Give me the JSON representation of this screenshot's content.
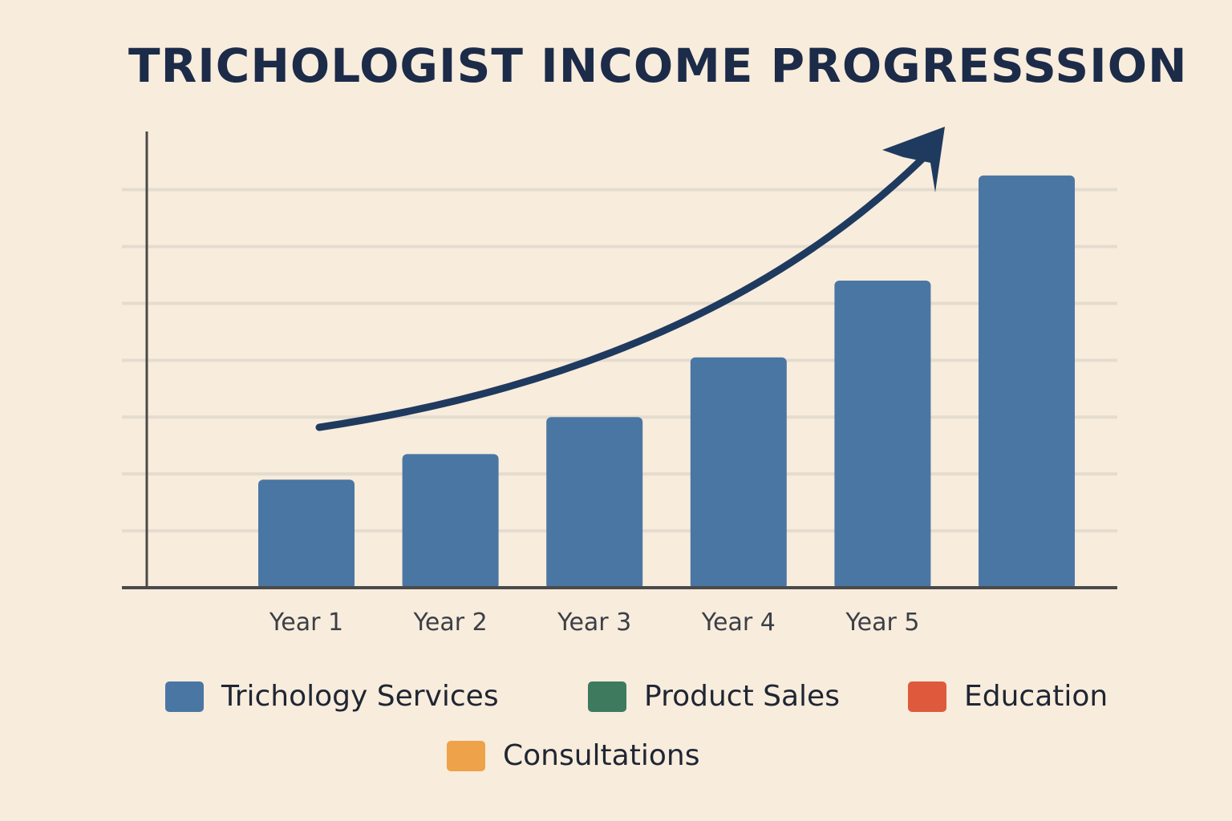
{
  "title": "TRICHOLOGIST INCOME PROGRESSSION",
  "chart_data": {
    "type": "bar",
    "title": "TRICHOLOGIST INCOME PROGRESSSION",
    "xlabel": "",
    "ylabel": "",
    "categories": [
      "Year 1",
      "Year 2",
      "Year 3",
      "Year 4",
      "Year 5",
      ""
    ],
    "values": [
      1.9,
      2.35,
      3.0,
      4.05,
      5.4,
      7.25
    ],
    "ylim": [
      0,
      7.6
    ],
    "gridlines": [
      1,
      2,
      3,
      4,
      5,
      6,
      7
    ],
    "grid": true,
    "trend_arrow": true,
    "legend_placement": "bottom",
    "legend": [
      {
        "label": "Trichology Services",
        "color": "#4a76a4"
      },
      {
        "label": "Product Sales",
        "color": "#3e7a5e"
      },
      {
        "label": "Education",
        "color": "#df5a3c"
      },
      {
        "label": "Consultations",
        "color": "#eea24a"
      }
    ],
    "colors": {
      "bar": "#4a76a4",
      "arrow": "#1f3a5f",
      "grid": "#e4dccf",
      "axis": "#4a4a4a"
    }
  }
}
